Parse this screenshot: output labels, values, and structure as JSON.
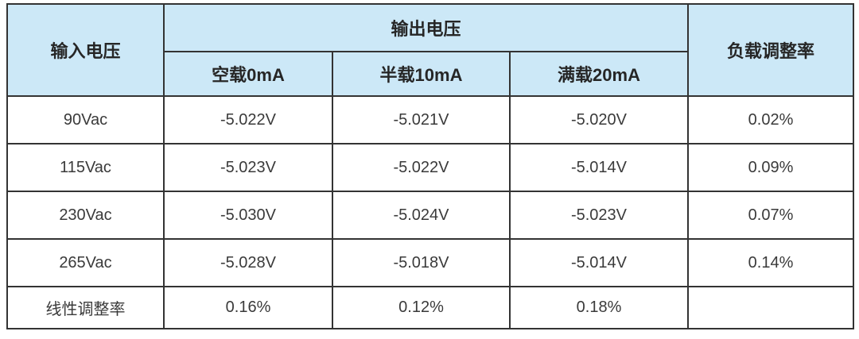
{
  "table": {
    "header": {
      "input_voltage": "输入电压",
      "output_voltage": "输出电压",
      "load_regulation": "负载调整率",
      "sub_columns": [
        "空载0mA",
        "半载10mA",
        "满载20mA"
      ]
    },
    "rows": [
      [
        "90Vac",
        "-5.022V",
        "-5.021V",
        "-5.020V",
        "0.02%"
      ],
      [
        "115Vac",
        "-5.023V",
        "-5.022V",
        "-5.014V",
        "0.09%"
      ],
      [
        "230Vac",
        "-5.030V",
        "-5.024V",
        "-5.023V",
        "0.07%"
      ],
      [
        "265Vac",
        "-5.028V",
        "-5.018V",
        "-5.014V",
        "0.14%"
      ],
      [
        "线性调整率",
        "0.16%",
        "0.12%",
        "0.18%",
        ""
      ]
    ],
    "colors": {
      "header_bg": "#cce8f7",
      "border": "#333333",
      "header_text": "#262626",
      "body_text": "#3a3a3a"
    }
  }
}
